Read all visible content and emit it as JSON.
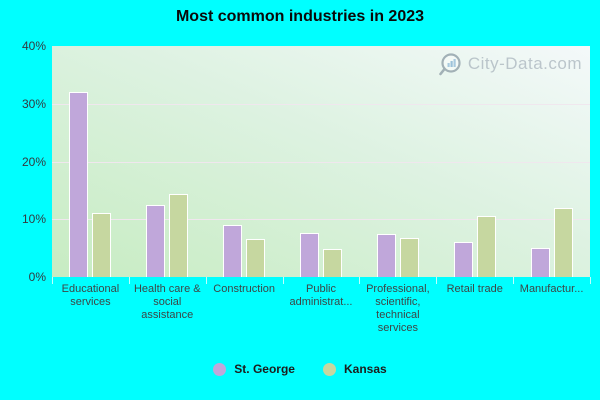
{
  "title": "Most common industries in 2023",
  "watermark": "City-Data.com",
  "colors": {
    "background": "#00ffff",
    "st_george_bar": "#c0a7da",
    "kansas_bar": "#c6d7a0",
    "plot_gradient_top": "#f4f9fa",
    "plot_gradient_bottom": "#c7ecc2",
    "gridline": "#f0e7ee",
    "title_text": "#0a0a0a",
    "axis_text": "#3c4646",
    "legend_text": "#1c1c1c",
    "watermark_text": "#b2bdc4"
  },
  "y_axis": {
    "ticks": [
      "40%",
      "30%",
      "20%",
      "10%",
      "0%"
    ],
    "max": 40
  },
  "chart_data": {
    "type": "bar",
    "title": "Most common industries in 2023",
    "categories": [
      "Educational services",
      "Health care & social assistance",
      "Construction",
      "Public administration",
      "Professional, scientific, technical services",
      "Retail trade",
      "Manufacturing"
    ],
    "categories_display": [
      "Educational services",
      "Health care & social assistance",
      "Construction",
      "Public administrat...",
      "Professional, scientific, technical services",
      "Retail trade",
      "Manufactur..."
    ],
    "series": [
      {
        "name": "St. George",
        "color": "#c0a7da",
        "values": [
          32,
          12.5,
          9,
          7.7,
          7.4,
          6.1,
          5.1
        ]
      },
      {
        "name": "Kansas",
        "color": "#c6d7a0",
        "values": [
          11,
          14.3,
          6.5,
          4.9,
          6.8,
          10.6,
          12
        ]
      }
    ],
    "xlabel": "",
    "ylabel": "",
    "ylim": [
      0,
      40
    ],
    "grid": true,
    "legend_position": "bottom"
  },
  "legend": {
    "items": [
      {
        "label": "St. George",
        "color": "#c0a7da"
      },
      {
        "label": "Kansas",
        "color": "#c6d7a0"
      }
    ]
  }
}
